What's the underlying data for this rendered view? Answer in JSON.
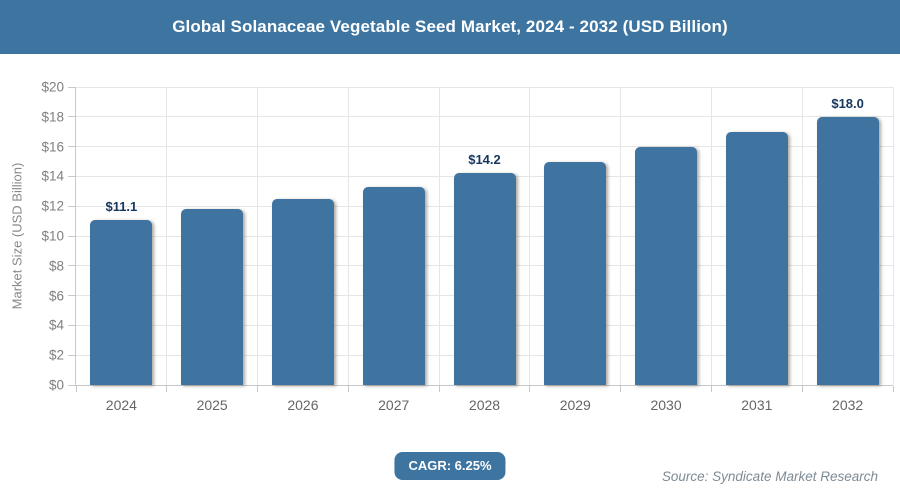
{
  "header": {
    "title": "Global Solanaceae Vegetable Seed Market, 2024 - 2032 (USD Billion)"
  },
  "chart_data": {
    "type": "bar",
    "title": "Global Solanaceae Vegetable Seed Market, 2024 - 2032 (USD Billion)",
    "categories": [
      "2024",
      "2025",
      "2026",
      "2027",
      "2028",
      "2029",
      "2030",
      "2031",
      "2032"
    ],
    "values": [
      11.1,
      11.8,
      12.5,
      13.3,
      14.2,
      15.0,
      16.0,
      17.0,
      18.0
    ],
    "data_labels": {
      "2024": "$11.1",
      "2028": "$14.2",
      "2032": "$18.0"
    },
    "xlabel": "",
    "ylabel": "Market Size (USD Billion)",
    "ylim": [
      0,
      20
    ],
    "ytick_step": 2,
    "ytick_labels": [
      "$0",
      "$2",
      "$4",
      "$6",
      "$8",
      "$10",
      "$12",
      "$14",
      "$16",
      "$18",
      "$20"
    ],
    "grid": true,
    "legend": "none"
  },
  "colors": {
    "header_bg": "#3d75a0",
    "bar_fill": "#3f74a0",
    "badge_bg": "#3d75a0",
    "data_label": "#16365f"
  },
  "footer": {
    "cagr_badge": "CAGR: 6.25%",
    "source_note": "Source: Syndicate Market Research"
  }
}
